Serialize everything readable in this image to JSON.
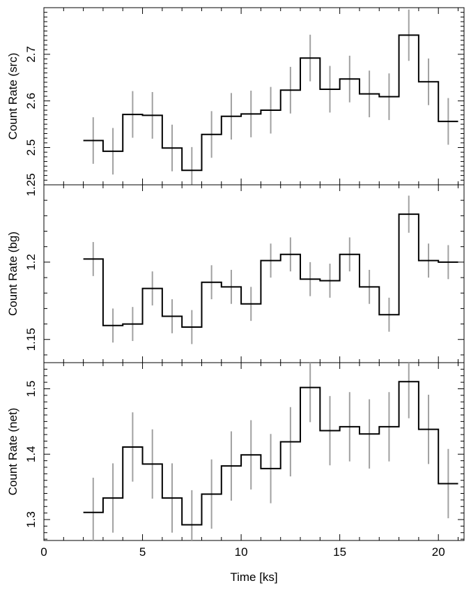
{
  "chart_data": [
    {
      "type": "line",
      "style": "histogram-step-with-error-bars",
      "ylabel": "Count Rate (src)",
      "xlabel": "",
      "xlim": [
        0,
        21.3
      ],
      "ylim": [
        2.42,
        2.8
      ],
      "xticks_major": [
        0,
        5,
        10,
        15,
        20
      ],
      "yticks_major": [
        2.5,
        2.6,
        2.7
      ],
      "bin_width": 1.0,
      "x": [
        2.5,
        3.5,
        4.5,
        5.5,
        6.5,
        7.5,
        8.5,
        9.5,
        10.5,
        11.5,
        12.5,
        13.5,
        14.5,
        15.5,
        16.5,
        17.5,
        18.5,
        19.5,
        20.5
      ],
      "values": [
        2.515,
        2.492,
        2.571,
        2.569,
        2.499,
        2.451,
        2.528,
        2.567,
        2.572,
        2.58,
        2.623,
        2.692,
        2.625,
        2.647,
        2.615,
        2.609,
        2.741,
        2.641,
        2.556
      ],
      "errors": [
        0.05,
        0.05,
        0.05,
        0.05,
        0.05,
        0.05,
        0.05,
        0.05,
        0.05,
        0.05,
        0.05,
        0.05,
        0.05,
        0.05,
        0.05,
        0.05,
        0.055,
        0.05,
        0.05
      ],
      "grid": false
    },
    {
      "type": "line",
      "style": "histogram-step-with-error-bars",
      "ylabel": "Count Rate (bg)",
      "xlabel": "",
      "xlim": [
        0,
        21.3
      ],
      "ylim": [
        1.135,
        1.25
      ],
      "xticks_major": [
        0,
        5,
        10,
        15,
        20
      ],
      "yticks_major": [
        1.15,
        1.2,
        1.25
      ],
      "bin_width": 1.0,
      "x": [
        2.5,
        3.5,
        4.5,
        5.5,
        6.5,
        7.5,
        8.5,
        9.5,
        10.5,
        11.5,
        12.5,
        13.5,
        14.5,
        15.5,
        16.5,
        17.5,
        18.5,
        19.5,
        20.5
      ],
      "values": [
        1.202,
        1.159,
        1.16,
        1.183,
        1.165,
        1.158,
        1.187,
        1.184,
        1.173,
        1.201,
        1.205,
        1.189,
        1.188,
        1.205,
        1.184,
        1.166,
        1.231,
        1.201,
        1.2
      ],
      "errors": [
        0.011,
        0.011,
        0.011,
        0.011,
        0.011,
        0.011,
        0.011,
        0.011,
        0.011,
        0.011,
        0.011,
        0.011,
        0.011,
        0.011,
        0.011,
        0.011,
        0.012,
        0.011,
        0.011
      ],
      "grid": false
    },
    {
      "type": "line",
      "style": "histogram-step-with-error-bars",
      "ylabel": "Count Rate (net)",
      "xlabel": "Time [ks]",
      "xlim": [
        0,
        21.3
      ],
      "ylim": [
        1.268,
        1.54
      ],
      "xticks_major": [
        0,
        5,
        10,
        15,
        20
      ],
      "yticks_major": [
        1.3,
        1.4,
        1.5
      ],
      "bin_width": 1.0,
      "x": [
        2.5,
        3.5,
        4.5,
        5.5,
        6.5,
        7.5,
        8.5,
        9.5,
        10.5,
        11.5,
        12.5,
        13.5,
        14.5,
        15.5,
        16.5,
        17.5,
        18.5,
        19.5,
        20.5
      ],
      "values": [
        1.311,
        1.333,
        1.411,
        1.385,
        1.333,
        1.292,
        1.339,
        1.382,
        1.399,
        1.378,
        1.419,
        1.502,
        1.436,
        1.442,
        1.431,
        1.442,
        1.511,
        1.438,
        1.355
      ],
      "errors": [
        0.053,
        0.053,
        0.053,
        0.053,
        0.053,
        0.053,
        0.053,
        0.053,
        0.053,
        0.053,
        0.053,
        0.053,
        0.053,
        0.053,
        0.053,
        0.053,
        0.056,
        0.053,
        0.053
      ],
      "grid": false
    }
  ]
}
